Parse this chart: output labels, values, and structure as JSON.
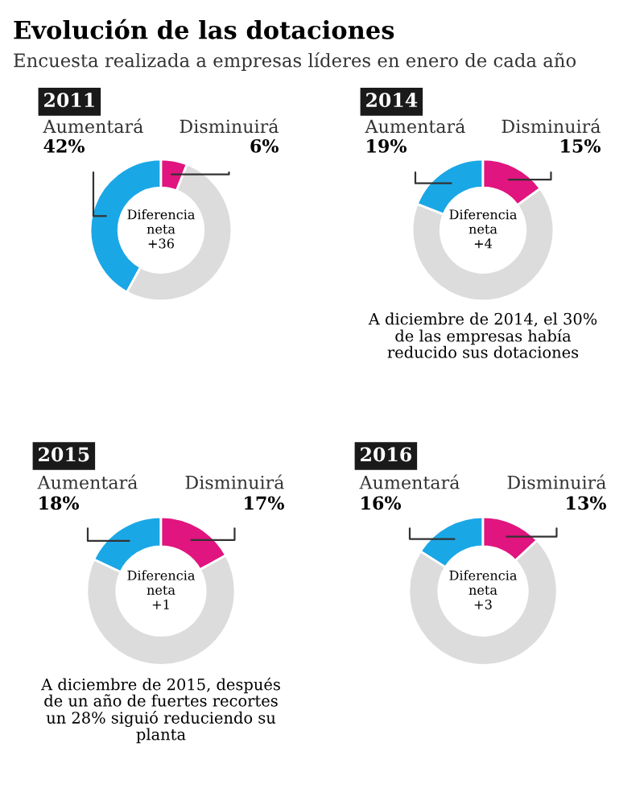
{
  "chart_data": [
    {
      "type": "other",
      "title": "Evolución de las dotaciones",
      "subtitle": "Encuesta realizada a empresas líderes en enero de cada año"
    },
    {
      "type": "donut",
      "title": "2011",
      "categories": [
        "Aumentará",
        "Disminuirá",
        null
      ],
      "values": [
        42,
        6,
        52
      ],
      "colors": [
        "#1aa7e6",
        "#e0157f",
        "#dcdcdc"
      ],
      "value_labels": [
        "42%",
        "6%",
        null
      ],
      "annotations": [
        "Diferencia\nneta\n+36"
      ]
    },
    {
      "type": "donut",
      "title": "2014",
      "categories": [
        "Aumentará",
        "Disminuirá",
        null
      ],
      "values": [
        19,
        15,
        66
      ],
      "colors": [
        "#1aa7e6",
        "#e0157f",
        "#dcdcdc"
      ],
      "value_labels": [
        "19%",
        "15%",
        null
      ],
      "annotations": [
        "Diferencia\nneta\n+4",
        "A diciembre de 2014, el 30%\nde las empresas había\nreducido sus dotaciones"
      ]
    },
    {
      "type": "donut",
      "title": "2015",
      "categories": [
        "Aumentará",
        "Disminuirá",
        null
      ],
      "values": [
        18,
        17,
        65
      ],
      "colors": [
        "#1aa7e6",
        "#e0157f",
        "#dcdcdc"
      ],
      "value_labels": [
        "18%",
        "17%",
        null
      ],
      "annotations": [
        "Diferencia\nneta\n+1",
        "A diciembre de 2015, después\nde un año de fuertes recortes\nun 28% siguió reduciendo su\nplanta"
      ]
    },
    {
      "type": "donut",
      "title": "2016",
      "categories": [
        "Aumentará",
        "Disminuirá",
        null
      ],
      "values": [
        16,
        13,
        71
      ],
      "colors": [
        "#1aa7e6",
        "#e0157f",
        "#dcdcdc"
      ],
      "value_labels": [
        "16%",
        "13%",
        null
      ],
      "annotations": [
        "Diferencia\nneta\n+3"
      ]
    }
  ]
}
